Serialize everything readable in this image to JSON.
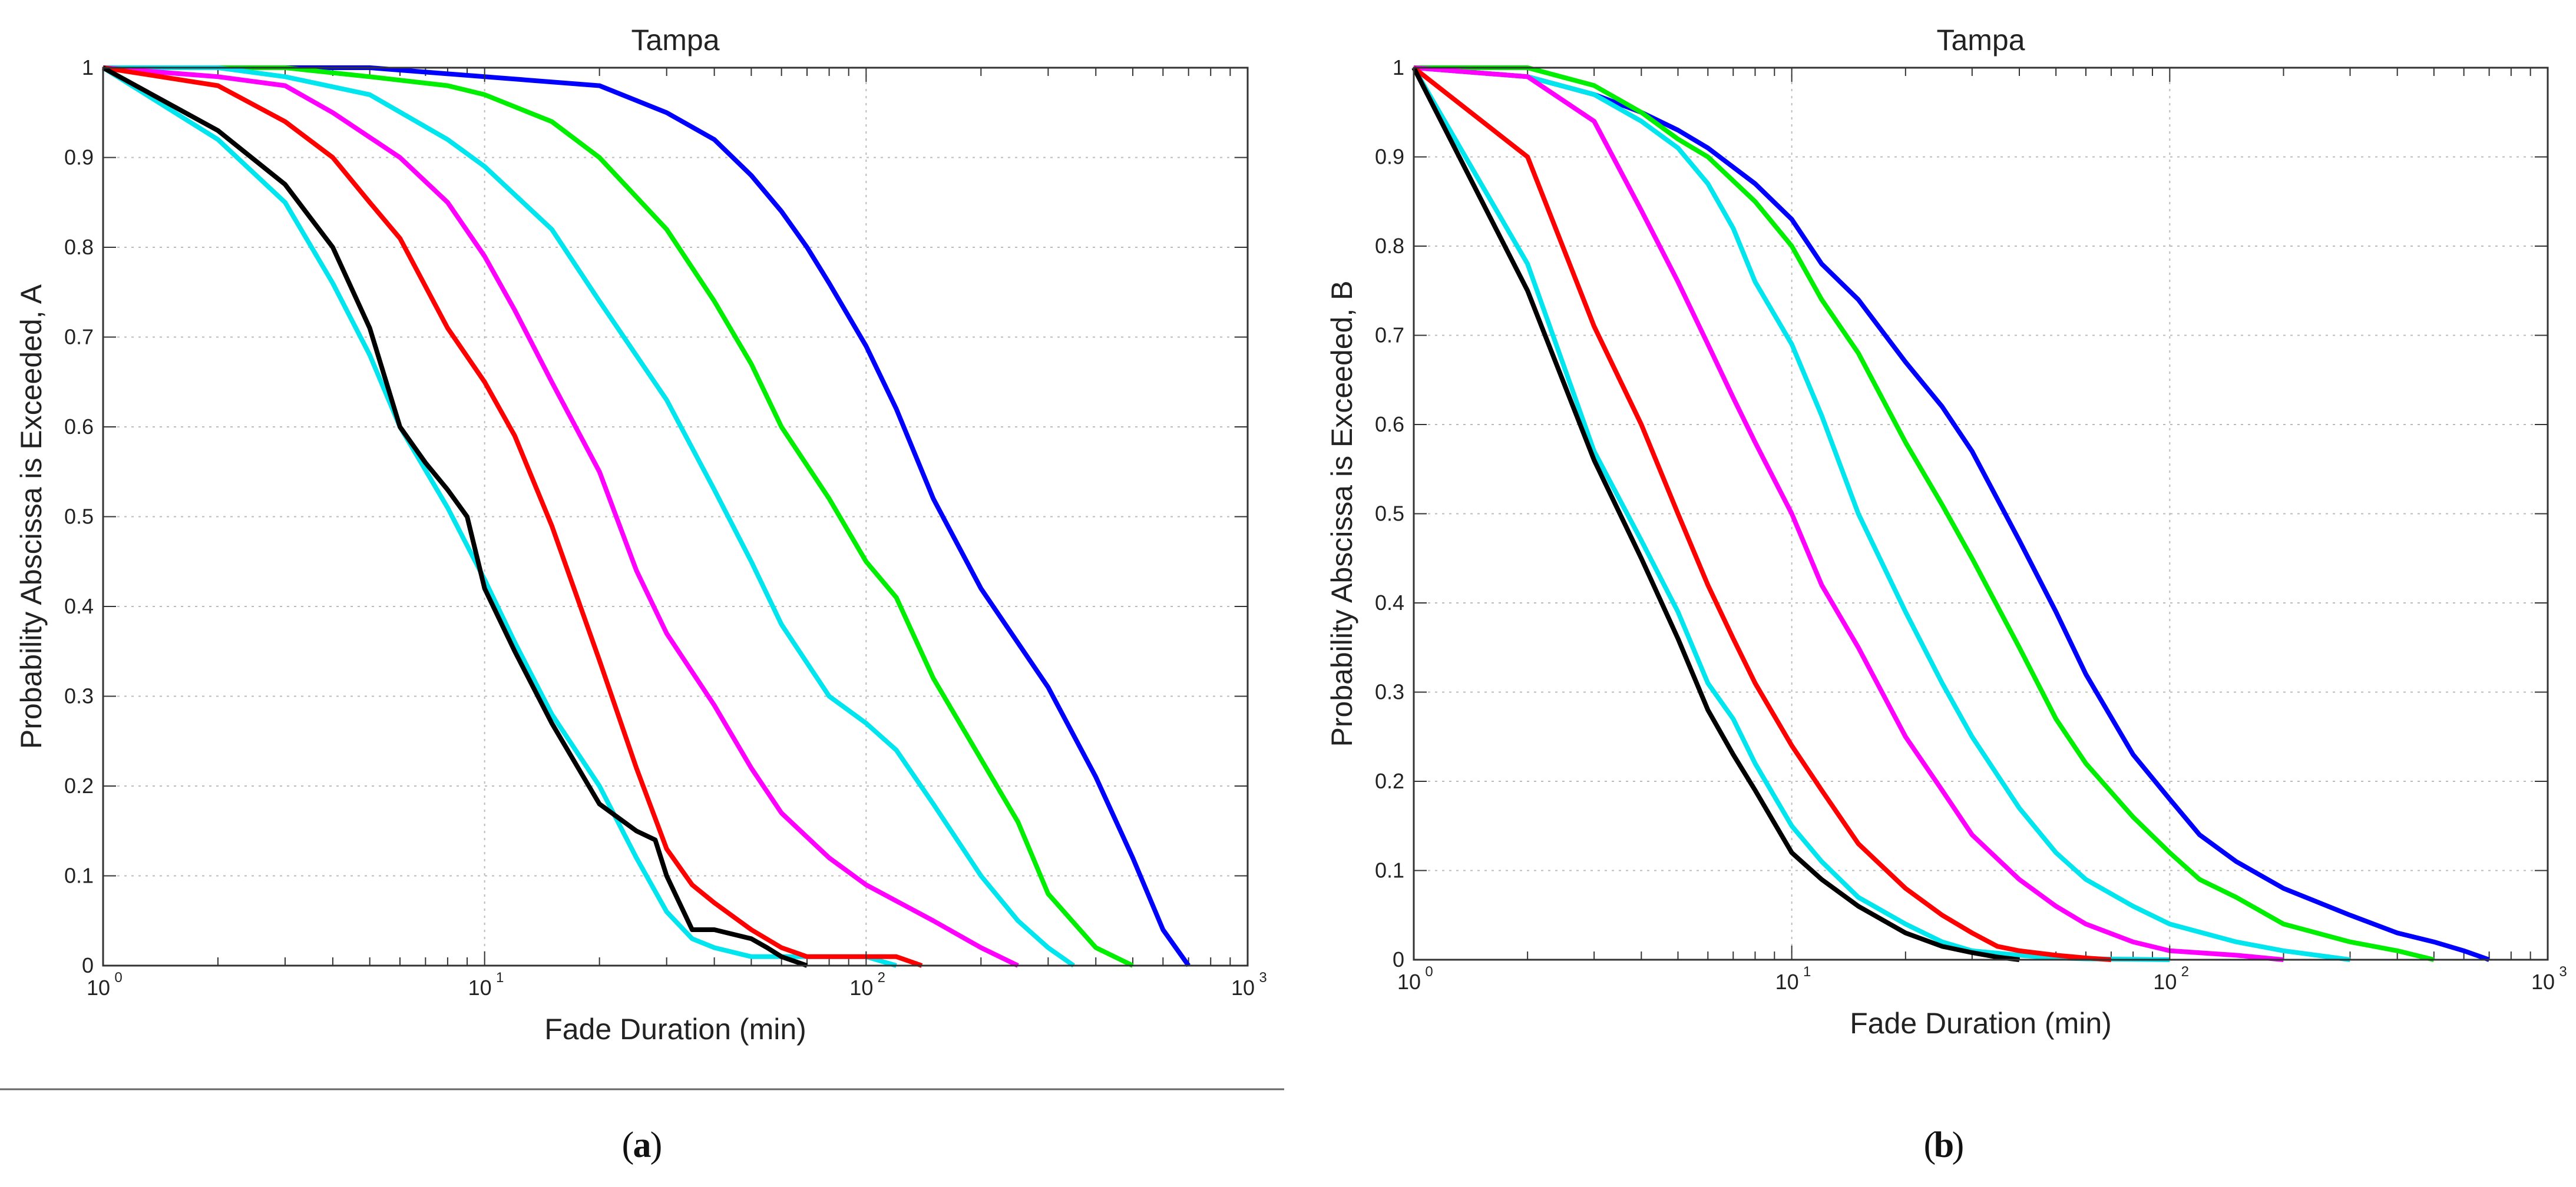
{
  "chart_data": [
    {
      "type": "line",
      "title": "Tampa",
      "xlabel": "Fade Duration (min)",
      "ylabel": "Probability Abscissa is Exceeded, A",
      "xscale": "log",
      "xlim": [
        1,
        1000
      ],
      "ylim": [
        0,
        1
      ],
      "grid": true,
      "x_ticks": [
        {
          "base": "10",
          "exp": "0"
        },
        {
          "base": "10",
          "exp": "1"
        },
        {
          "base": "10",
          "exp": "2"
        },
        {
          "base": "10",
          "exp": "3"
        }
      ],
      "y_ticks": [
        "0",
        "0.1",
        "0.2",
        "0.3",
        "0.4",
        "0.5",
        "0.6",
        "0.7",
        "0.8",
        "0.9",
        "1"
      ],
      "caption": {
        "open": "(",
        "letter": "a",
        "close": ")"
      },
      "series": [
        {
          "color": "#0000ff",
          "x": [
            1,
            5,
            10,
            20,
            30,
            40,
            50,
            60,
            70,
            80,
            100,
            120,
            150,
            200,
            300,
            400,
            500,
            600,
            700
          ],
          "y": [
            1,
            1,
            0.99,
            0.98,
            0.95,
            0.92,
            0.88,
            0.84,
            0.8,
            0.76,
            0.69,
            0.62,
            0.52,
            0.42,
            0.31,
            0.21,
            0.12,
            0.04,
            0
          ]
        },
        {
          "color": "#00ee00",
          "x": [
            1,
            3,
            5,
            8,
            10,
            15,
            20,
            30,
            40,
            50,
            60,
            80,
            100,
            120,
            150,
            200,
            250,
            300,
            400,
            500
          ],
          "y": [
            1,
            1,
            0.99,
            0.98,
            0.97,
            0.94,
            0.9,
            0.82,
            0.74,
            0.67,
            0.6,
            0.52,
            0.45,
            0.41,
            0.32,
            0.23,
            0.16,
            0.08,
            0.02,
            0
          ]
        },
        {
          "color": "#00e5ee",
          "x": [
            1,
            2,
            3,
            5,
            8,
            10,
            15,
            20,
            30,
            40,
            50,
            60,
            80,
            100,
            120,
            150,
            200,
            250,
            300,
            350
          ],
          "y": [
            1,
            1,
            0.99,
            0.97,
            0.92,
            0.89,
            0.82,
            0.74,
            0.63,
            0.53,
            0.45,
            0.38,
            0.3,
            0.27,
            0.24,
            0.18,
            0.1,
            0.05,
            0.02,
            0
          ]
        },
        {
          "color": "#ff00ff",
          "x": [
            1,
            2,
            3,
            4,
            6,
            8,
            10,
            12,
            15,
            20,
            25,
            30,
            40,
            50,
            60,
            80,
            100,
            150,
            200,
            250
          ],
          "y": [
            1,
            0.99,
            0.98,
            0.95,
            0.9,
            0.85,
            0.79,
            0.73,
            0.65,
            0.55,
            0.44,
            0.37,
            0.29,
            0.22,
            0.17,
            0.12,
            0.09,
            0.05,
            0.02,
            0
          ]
        },
        {
          "color": "#00e5ee",
          "x": [
            1,
            2,
            3,
            4,
            5,
            6,
            8,
            10,
            12,
            15,
            20,
            25,
            30,
            35,
            40,
            50,
            60,
            80,
            100,
            120
          ],
          "y": [
            1,
            0.92,
            0.85,
            0.76,
            0.68,
            0.6,
            0.51,
            0.43,
            0.36,
            0.28,
            0.2,
            0.12,
            0.06,
            0.03,
            0.02,
            0.01,
            0.01,
            0.01,
            0.01,
            0
          ]
        },
        {
          "color": "#ff0000",
          "x": [
            1,
            2,
            3,
            4,
            5,
            6,
            8,
            10,
            12,
            15,
            20,
            25,
            30,
            35,
            40,
            50,
            60,
            70,
            80,
            100,
            120,
            140
          ],
          "y": [
            1,
            0.98,
            0.94,
            0.9,
            0.85,
            0.81,
            0.71,
            0.65,
            0.59,
            0.49,
            0.34,
            0.22,
            0.13,
            0.09,
            0.07,
            0.04,
            0.02,
            0.01,
            0.01,
            0.01,
            0.01,
            0
          ]
        },
        {
          "color": "#000000",
          "x": [
            1,
            2,
            3,
            4,
            5,
            6,
            7,
            8,
            9,
            10,
            12,
            15,
            20,
            25,
            28,
            30,
            35,
            40,
            50,
            55,
            60,
            70
          ],
          "y": [
            1,
            0.93,
            0.87,
            0.8,
            0.71,
            0.6,
            0.56,
            0.53,
            0.5,
            0.42,
            0.35,
            0.27,
            0.18,
            0.15,
            0.14,
            0.1,
            0.04,
            0.04,
            0.03,
            0.02,
            0.01,
            0
          ]
        }
      ]
    },
    {
      "type": "line",
      "title": "Tampa",
      "xlabel": "Fade Duration (min)",
      "ylabel": "Probability Abscissa is Exceeded, B",
      "xscale": "log",
      "xlim": [
        1,
        1000
      ],
      "ylim": [
        0,
        1
      ],
      "grid": true,
      "x_ticks": [
        {
          "base": "10",
          "exp": "0"
        },
        {
          "base": "10",
          "exp": "1"
        },
        {
          "base": "10",
          "exp": "2"
        },
        {
          "base": "10",
          "exp": "3"
        }
      ],
      "y_ticks": [
        "0",
        "0.1",
        "0.2",
        "0.3",
        "0.4",
        "0.5",
        "0.6",
        "0.7",
        "0.8",
        "0.9",
        "1"
      ],
      "caption": {
        "open": "(",
        "letter": "b",
        "close": ")"
      },
      "series": [
        {
          "color": "#0000ff",
          "x": [
            1,
            2,
            3,
            4,
            5,
            6,
            8,
            10,
            12,
            15,
            20,
            25,
            30,
            40,
            50,
            60,
            80,
            100,
            120,
            150,
            200,
            300,
            400,
            500,
            600,
            700
          ],
          "y": [
            1,
            0.99,
            0.97,
            0.95,
            0.93,
            0.91,
            0.87,
            0.83,
            0.78,
            0.74,
            0.67,
            0.62,
            0.57,
            0.47,
            0.39,
            0.32,
            0.23,
            0.18,
            0.14,
            0.11,
            0.08,
            0.05,
            0.03,
            0.02,
            0.01,
            0
          ]
        },
        {
          "color": "#00ee00",
          "x": [
            1,
            2,
            3,
            4,
            5,
            6,
            8,
            10,
            12,
            15,
            20,
            25,
            30,
            40,
            50,
            60,
            80,
            100,
            120,
            150,
            200,
            300,
            400,
            500
          ],
          "y": [
            1,
            1,
            0.98,
            0.95,
            0.92,
            0.9,
            0.85,
            0.8,
            0.74,
            0.68,
            0.58,
            0.51,
            0.45,
            0.35,
            0.27,
            0.22,
            0.16,
            0.12,
            0.09,
            0.07,
            0.04,
            0.02,
            0.01,
            0
          ]
        },
        {
          "color": "#00e5ee",
          "x": [
            1,
            2,
            3,
            4,
            5,
            6,
            7,
            8,
            10,
            12,
            15,
            20,
            25,
            30,
            40,
            50,
            60,
            80,
            100,
            150,
            200,
            300
          ],
          "y": [
            1,
            0.99,
            0.97,
            0.94,
            0.91,
            0.87,
            0.82,
            0.76,
            0.69,
            0.61,
            0.5,
            0.39,
            0.31,
            0.25,
            0.17,
            0.12,
            0.09,
            0.06,
            0.04,
            0.02,
            0.01,
            0
          ]
        },
        {
          "color": "#ff00ff",
          "x": [
            1,
            2,
            3,
            4,
            5,
            6,
            7,
            8,
            10,
            12,
            15,
            20,
            25,
            30,
            40,
            50,
            60,
            80,
            100,
            150,
            200
          ],
          "y": [
            1,
            0.99,
            0.94,
            0.84,
            0.76,
            0.69,
            0.63,
            0.58,
            0.5,
            0.42,
            0.35,
            0.25,
            0.19,
            0.14,
            0.09,
            0.06,
            0.04,
            0.02,
            0.01,
            0.005,
            0
          ]
        },
        {
          "color": "#00e5ee",
          "x": [
            1,
            2,
            3,
            4,
            5,
            6,
            7,
            8,
            10,
            12,
            15,
            20,
            25,
            30,
            40,
            50,
            60,
            80,
            100
          ],
          "y": [
            1,
            0.78,
            0.57,
            0.47,
            0.39,
            0.31,
            0.27,
            0.22,
            0.15,
            0.11,
            0.07,
            0.04,
            0.02,
            0.01,
            0.005,
            0.002,
            0.001,
            0.0005,
            0
          ]
        },
        {
          "color": "#ff0000",
          "x": [
            1,
            2,
            3,
            4,
            5,
            6,
            7,
            8,
            10,
            12,
            15,
            20,
            25,
            30,
            35,
            40,
            50,
            60,
            70
          ],
          "y": [
            1,
            0.9,
            0.71,
            0.6,
            0.5,
            0.42,
            0.36,
            0.31,
            0.24,
            0.19,
            0.13,
            0.08,
            0.05,
            0.03,
            0.015,
            0.01,
            0.005,
            0.002,
            0
          ]
        },
        {
          "color": "#000000",
          "x": [
            1,
            2,
            3,
            4,
            5,
            6,
            7,
            8,
            10,
            12,
            15,
            20,
            25,
            30,
            35,
            40
          ],
          "y": [
            1,
            0.75,
            0.56,
            0.45,
            0.36,
            0.28,
            0.23,
            0.19,
            0.12,
            0.09,
            0.06,
            0.03,
            0.015,
            0.008,
            0.003,
            0
          ]
        }
      ]
    }
  ]
}
